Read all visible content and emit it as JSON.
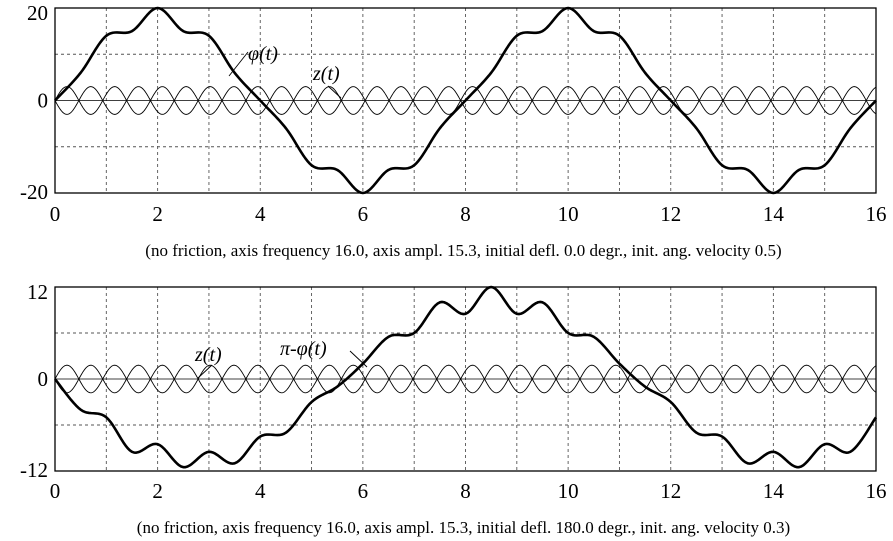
{
  "chart_data": [
    {
      "type": "line",
      "title": "",
      "xlabel": "",
      "ylabel": "",
      "xlim": [
        0,
        16
      ],
      "ylim": [
        -20,
        20
      ],
      "x_ticks": [
        "0",
        "2",
        "4",
        "6",
        "8",
        "10",
        "12",
        "14",
        "16"
      ],
      "y_ticks": [
        "20",
        "0",
        "-20"
      ],
      "grid": true,
      "caption": "(no friction,  axis frequency 16.0, axis ampl. 15.3,  initial defl. 0.0 degr.,  init. ang. velocity 0.5)",
      "series": [
        {
          "name": "φ(t)",
          "style": "thick",
          "x": [
            0,
            0.5,
            1,
            1.5,
            2,
            2.5,
            3,
            3.5,
            4,
            4.5,
            5,
            5.5,
            6,
            6.5,
            7,
            7.5,
            8,
            8.5,
            9,
            9.5,
            10,
            10.5,
            11,
            11.5,
            12,
            12.5,
            13,
            13.5,
            14,
            14.5,
            15,
            15.5,
            16
          ],
          "values": [
            0,
            6,
            14,
            15,
            20,
            15,
            14,
            6,
            0,
            -6,
            -14,
            -15,
            -20,
            -15,
            -14,
            -6,
            0,
            6,
            14,
            15,
            20,
            15,
            14,
            6,
            0,
            -6,
            -14,
            -15,
            -20,
            -15,
            -14,
            -6,
            0
          ]
        },
        {
          "name": "z(t)",
          "style": "thin",
          "function": "sine",
          "amplitude": 3,
          "period": 0.93,
          "x_range": [
            0,
            16
          ]
        },
        {
          "name": "",
          "style": "thin",
          "function": "sine",
          "amplitude": -3,
          "period": 0.93,
          "x_range": [
            0,
            16
          ]
        }
      ]
    },
    {
      "type": "line",
      "title": "",
      "xlabel": "",
      "ylabel": "",
      "xlim": [
        0,
        16
      ],
      "ylim": [
        -12,
        12
      ],
      "x_ticks": [
        "0",
        "2",
        "4",
        "6",
        "8",
        "10",
        "12",
        "14",
        "16"
      ],
      "y_ticks": [
        "12",
        "0",
        "-12"
      ],
      "grid": true,
      "caption": "(no friction,  axis frequency 16.0, axis ampl. 15.3,  initial defl. 180.0 degr.,  init. ang. velocity 0.3)",
      "series": [
        {
          "name": "π-φ(t)",
          "style": "thick",
          "x": [
            0,
            0.5,
            1,
            1.5,
            2,
            2.5,
            3,
            3.5,
            4,
            4.5,
            5,
            5.5,
            6,
            6.5,
            7,
            7.5,
            8,
            8.5,
            9,
            9.5,
            10,
            10.5,
            11,
            11.5,
            12,
            12.5,
            13,
            13.5,
            14,
            14.5,
            15,
            15.5,
            16
          ],
          "values": [
            0,
            -4,
            -5,
            -9.5,
            -8.5,
            -11.5,
            -9.5,
            -11,
            -7.5,
            -7,
            -3,
            -1,
            2,
            5.5,
            6,
            10,
            8.5,
            12,
            8.5,
            10,
            6,
            5.5,
            2,
            -1,
            -3,
            -7,
            -7.5,
            -11,
            -9.5,
            -11.5,
            -8.5,
            -9.5,
            -5
          ]
        },
        {
          "name": "z(t)",
          "style": "thin",
          "function": "sine",
          "amplitude": 1.8,
          "period": 0.93,
          "x_range": [
            0,
            16
          ]
        },
        {
          "name": "",
          "style": "thin",
          "function": "sine",
          "amplitude": -1.8,
          "period": 0.93,
          "x_range": [
            0,
            16
          ]
        }
      ]
    }
  ]
}
